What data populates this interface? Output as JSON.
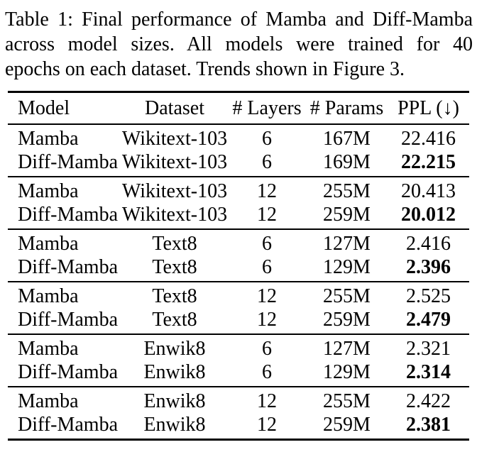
{
  "colors": {
    "background": "#ffffff",
    "text": "#000000",
    "rule": "#000000"
  },
  "caption": {
    "label": "Table 1:",
    "full": "Table 1: Final performance of Mamba and Diff-Mamba across model sizes. All models were trained for 40 epochs on each dataset. Trends shown in Figure 3.",
    "lines": [
      "Table 1: Final performance of Mamba and Diff-Mamba",
      "across model sizes. All models were trained for 40",
      "epochs on each dataset. Trends shown in Figure 3."
    ]
  },
  "table": {
    "columns": [
      "Model",
      "Dataset",
      "# Layers",
      "# Params",
      "PPL (↓)"
    ],
    "groups": [
      {
        "rows": [
          {
            "model": "Mamba",
            "dataset": "Wikitext-103",
            "layers": "6",
            "params": "167M",
            "ppl": "22.416",
            "ppl_bold": false
          },
          {
            "model": "Diff-Mamba",
            "dataset": "Wikitext-103",
            "layers": "6",
            "params": "169M",
            "ppl": "22.215",
            "ppl_bold": true
          }
        ]
      },
      {
        "rows": [
          {
            "model": "Mamba",
            "dataset": "Wikitext-103",
            "layers": "12",
            "params": "255M",
            "ppl": "20.413",
            "ppl_bold": false
          },
          {
            "model": "Diff-Mamba",
            "dataset": "Wikitext-103",
            "layers": "12",
            "params": "259M",
            "ppl": "20.012",
            "ppl_bold": true
          }
        ]
      },
      {
        "rows": [
          {
            "model": "Mamba",
            "dataset": "Text8",
            "layers": "6",
            "params": "127M",
            "ppl": "2.416",
            "ppl_bold": false
          },
          {
            "model": "Diff-Mamba",
            "dataset": "Text8",
            "layers": "6",
            "params": "129M",
            "ppl": "2.396",
            "ppl_bold": true
          }
        ]
      },
      {
        "rows": [
          {
            "model": "Mamba",
            "dataset": "Text8",
            "layers": "12",
            "params": "255M",
            "ppl": "2.525",
            "ppl_bold": false
          },
          {
            "model": "Diff-Mamba",
            "dataset": "Text8",
            "layers": "12",
            "params": "259M",
            "ppl": "2.479",
            "ppl_bold": true
          }
        ]
      },
      {
        "rows": [
          {
            "model": "Mamba",
            "dataset": "Enwik8",
            "layers": "6",
            "params": "127M",
            "ppl": "2.321",
            "ppl_bold": false
          },
          {
            "model": "Diff-Mamba",
            "dataset": "Enwik8",
            "layers": "6",
            "params": "129M",
            "ppl": "2.314",
            "ppl_bold": true
          }
        ]
      },
      {
        "rows": [
          {
            "model": "Mamba",
            "dataset": "Enwik8",
            "layers": "12",
            "params": "255M",
            "ppl": "2.422",
            "ppl_bold": false
          },
          {
            "model": "Diff-Mamba",
            "dataset": "Enwik8",
            "layers": "12",
            "params": "259M",
            "ppl": "2.381",
            "ppl_bold": true
          }
        ]
      }
    ]
  }
}
